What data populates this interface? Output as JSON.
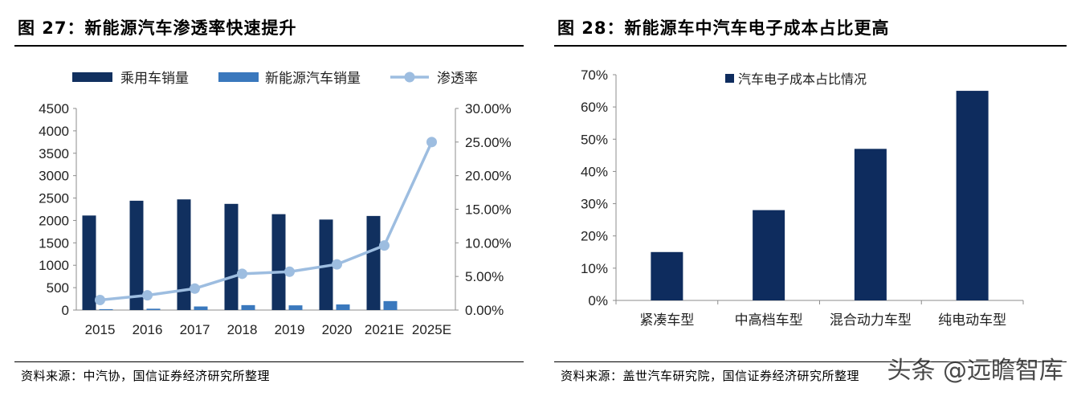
{
  "left": {
    "title": "图 27：新能源汽车渗透率快速提升",
    "source": "资料来源：中汽协，国信证券经济研究所整理",
    "colors": {
      "sales": "#11305f",
      "nev": "#3a78bd",
      "rate": "#9dbde0"
    },
    "chart_data": {
      "type": "bar",
      "categories": [
        "2015",
        "2016",
        "2017",
        "2018",
        "2019",
        "2020",
        "2021E",
        "2025E"
      ],
      "series": [
        {
          "name": "乘用车销量",
          "type": "bar",
          "axis": "left",
          "values": [
            2110,
            2440,
            2470,
            2370,
            2140,
            2020,
            2100,
            null
          ]
        },
        {
          "name": "新能源汽车销量",
          "type": "bar",
          "axis": "left",
          "values": [
            20,
            30,
            80,
            110,
            105,
            125,
            200,
            null
          ]
        },
        {
          "name": "渗透率",
          "type": "line",
          "axis": "right",
          "values": [
            1.5,
            2.2,
            3.2,
            5.4,
            5.7,
            6.8,
            9.6,
            25.0
          ]
        }
      ],
      "y_left": {
        "min": 0,
        "max": 4500,
        "ticks": [
          "4500",
          "4000",
          "3500",
          "3000",
          "2500",
          "2000",
          "1500",
          "1000",
          "500",
          "0"
        ]
      },
      "y_right": {
        "min": 0,
        "max": 30,
        "ticks": [
          "30.00%",
          "25.00%",
          "20.00%",
          "15.00%",
          "10.00%",
          "5.00%",
          "0.00%"
        ]
      },
      "legend_position": "top"
    }
  },
  "right": {
    "title": "图 28：新能源车中汽车电子成本占比更高",
    "source": "资料来源：盖世汽车研究院，国信证券经济研究所整理",
    "colors": {
      "bar": "#0e2c5e"
    },
    "chart_data": {
      "type": "bar",
      "categories": [
        "紧凑车型",
        "中高档车型",
        "混合动力车型",
        "纯电动车型"
      ],
      "series": [
        {
          "name": "汽车电子成本占比情况",
          "values": [
            15,
            28,
            47,
            65
          ]
        }
      ],
      "y": {
        "min": 0,
        "max": 70,
        "ticks": [
          "70%",
          "60%",
          "50%",
          "40%",
          "30%",
          "20%",
          "10%",
          "0%"
        ]
      },
      "legend_position": "top-left"
    }
  },
  "watermark": "头条 @远瞻智库"
}
